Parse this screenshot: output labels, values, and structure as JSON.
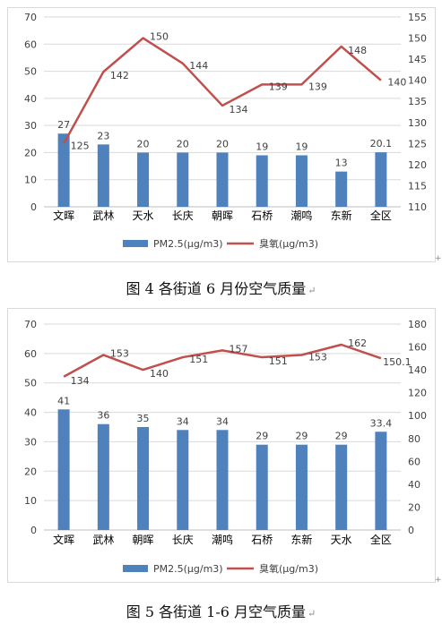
{
  "chart_data": [
    {
      "type": "bar",
      "categories": [
        "文晖",
        "武林",
        "天水",
        "长庆",
        "朝晖",
        "石桥",
        "潮鸣",
        "东新",
        "全区"
      ],
      "series": [
        {
          "name": "PM2.5(μg/m3)",
          "type": "bar",
          "axis": "left",
          "values": [
            27,
            23,
            20,
            20,
            20,
            19,
            19,
            13,
            20.1
          ],
          "labels": [
            "27",
            "23",
            "20",
            "20",
            "20",
            "19",
            "19",
            "13",
            "20.1"
          ]
        },
        {
          "name": "臭氧(μg/m3)",
          "type": "line",
          "axis": "right",
          "values": [
            125,
            142,
            150,
            144,
            134,
            139,
            139,
            148,
            140
          ],
          "labels": [
            "125",
            "142",
            "150",
            "144",
            "134",
            "139",
            "139",
            "148",
            "140"
          ]
        }
      ],
      "ylim_left": [
        0,
        70
      ],
      "yticks_left": [
        "0",
        "10",
        "20",
        "30",
        "40",
        "50",
        "60",
        "70"
      ],
      "ylim_right": [
        110,
        155
      ],
      "yticks_right": [
        "110",
        "115",
        "120",
        "125",
        "130",
        "135",
        "140",
        "145",
        "150",
        "155"
      ],
      "grid": true,
      "legend": "bottom",
      "colors": {
        "bar": "#4f81bd",
        "line": "#c0504d"
      }
    },
    {
      "type": "bar",
      "categories": [
        "文晖",
        "武林",
        "朝晖",
        "长庆",
        "潮鸣",
        "石桥",
        "东新",
        "天水",
        "全区"
      ],
      "series": [
        {
          "name": "PM2.5(μg/m3)",
          "type": "bar",
          "axis": "left",
          "values": [
            41,
            36,
            35,
            34,
            34,
            29,
            29,
            29,
            33.4
          ],
          "labels": [
            "41",
            "36",
            "35",
            "34",
            "34",
            "29",
            "29",
            "29",
            "33.4"
          ]
        },
        {
          "name": "臭氧(μg/m3)",
          "type": "line",
          "axis": "right",
          "values": [
            134,
            153,
            140,
            151,
            157,
            151,
            153,
            162,
            150.1
          ],
          "labels": [
            "134",
            "153",
            "140",
            "151",
            "157",
            "151",
            "153",
            "162",
            "150.1"
          ]
        }
      ],
      "ylim_left": [
        0,
        70
      ],
      "yticks_left": [
        "0",
        "10",
        "20",
        "30",
        "40",
        "50",
        "60",
        "70"
      ],
      "ylim_right": [
        0,
        180
      ],
      "yticks_right": [
        "0",
        "20",
        "40",
        "60",
        "80",
        "100",
        "120",
        "140",
        "160",
        "180"
      ],
      "grid": true,
      "legend": "bottom",
      "colors": {
        "bar": "#4f81bd",
        "line": "#c0504d"
      }
    }
  ],
  "captions": {
    "figure4": "图 4  各街道 6 月份空气质量",
    "figure5": "图 5  各街道 1-6 月空气质量"
  },
  "marks": {
    "return_mark": "↵",
    "corner_mark": "+"
  }
}
